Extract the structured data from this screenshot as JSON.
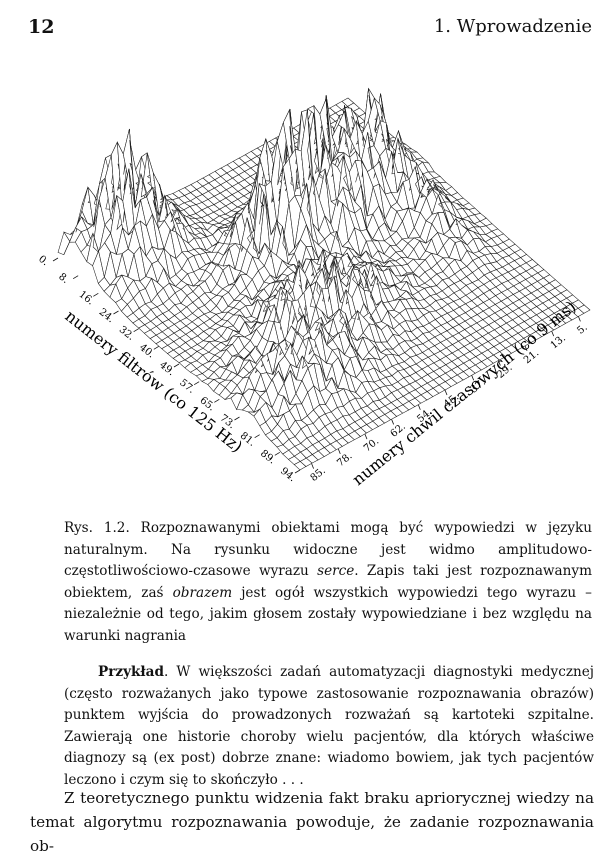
{
  "header": {
    "page_number": "12",
    "chapter": "1. Wprowadzeniе"
  },
  "figure": {
    "filter_ticks": [
      "0",
      "8",
      "16",
      "24",
      "32",
      "40",
      "49",
      "57",
      "65",
      "73",
      "81",
      "89",
      "94"
    ],
    "time_ticks": [
      "5",
      "13",
      "21",
      "29",
      "37",
      "45",
      "54",
      "62",
      "70",
      "78",
      "85"
    ],
    "filter_axis_label": "numery filtrów (co 125 Hz)",
    "time_axis_label": "numery chwil czasowych (co 9 ms)"
  },
  "caption": {
    "label": "Rys. 1.2.",
    "text_1": "Rozpoznawanymi obiektami mogą być wypowiedzi w języku naturalnym. Na rysunku widoczne jest widmo amplitudowo-częstotliwościowo-czasowe wyrazu",
    "word_1": "serce",
    "text_2": ". Zapis taki jest rozpoznawanym obiektem, zaś",
    "word_2": "obrazem",
    "text_3": "jest ogół wszystkich wypowiedzi tego wyrazu – niezależnie od tego, jakim głosem zostały wypowiedziane i bez względu na warunki nagrania"
  },
  "example": {
    "lead": "Przykład",
    "text": ". W większości zadań automatyzacji diagnostyki medycznej (często rozważanych jako typowe zastosowanie rozpoznawania obrazów) punktem wyjścia do prowadzonych rozważań są kartoteki szpitalne. Zawierają one historie choroby wielu pacjentów, dla których właściwe diagnozy są (ex post) dobrze znane: wiadomo bowiem, jak tych pacjentów leczono i czym się to skończyło . . ."
  },
  "paragraph": {
    "text": "Z teoretycznego punktu widzenia fakt braku apriorycznej wiedzy na temat algorytmu rozpoznawania powoduje, że zadanie rozpoznawania ob-"
  }
}
